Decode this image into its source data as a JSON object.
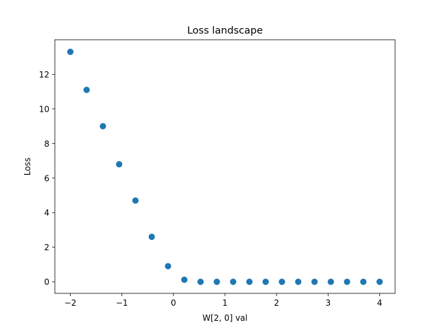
{
  "chart_data": {
    "type": "scatter",
    "title": "Loss landscape",
    "xlabel": "W[2, 0] val",
    "ylabel": "Loss",
    "xlim": [
      -2.3,
      4.3
    ],
    "ylim": [
      -0.67,
      14.0
    ],
    "xticks": [
      -2,
      -1,
      0,
      1,
      2,
      3,
      4
    ],
    "xtick_labels": [
      "−2",
      "−1",
      "0",
      "1",
      "2",
      "3",
      "4"
    ],
    "yticks": [
      0,
      2,
      4,
      6,
      8,
      10,
      12
    ],
    "ytick_labels": [
      "0",
      "2",
      "4",
      "6",
      "8",
      "10",
      "12"
    ],
    "grid": false,
    "series": [
      {
        "color": "#1f77b4",
        "x": [
          -2.0,
          -1.684,
          -1.368,
          -1.053,
          -0.737,
          -0.421,
          -0.105,
          0.211,
          0.526,
          0.842,
          1.158,
          1.474,
          1.789,
          2.105,
          2.421,
          2.737,
          3.053,
          3.368,
          3.684,
          4.0
        ],
        "y": [
          13.3,
          11.1,
          9.0,
          6.8,
          4.7,
          2.6,
          0.9,
          0.12,
          0.0,
          0.0,
          0.0,
          0.0,
          0.0,
          0.0,
          0.0,
          0.0,
          0.0,
          0.0,
          0.0,
          0.0
        ]
      }
    ]
  }
}
